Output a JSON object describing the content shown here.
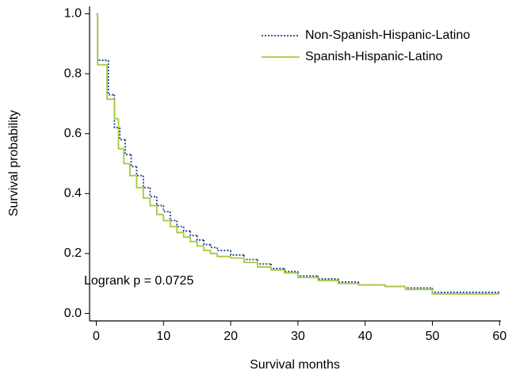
{
  "chart_data": {
    "type": "step",
    "x_label": "Survival months",
    "y_label": "Survival probability",
    "annotation": "Logrank p = 0.0725",
    "xlim": [
      -1,
      60.2
    ],
    "ylim": [
      -0.025,
      1.025
    ],
    "xticks": [
      0,
      10,
      20,
      30,
      40,
      50,
      60
    ],
    "yticks": [
      {
        "value": 0,
        "label": "0.0"
      },
      0.2,
      0.4,
      0.6,
      0.8,
      {
        "value": 1,
        "label": "1.0"
      }
    ],
    "legend": "upper right",
    "series": [
      {
        "name": "Non-Spanish-Hispanic-Latino",
        "color": "#1f3f8f",
        "dash": "dotted",
        "x": [
          0,
          0.2,
          1.8,
          2.7,
          3.5,
          4.3,
          5.2,
          6,
          7,
          8,
          9,
          10,
          11,
          12,
          13,
          14,
          15,
          16,
          17,
          18,
          20,
          22,
          24,
          26,
          28,
          30,
          33,
          36,
          39,
          43,
          46,
          50,
          60
        ],
        "values": [
          1.0,
          0.845,
          0.73,
          0.62,
          0.58,
          0.53,
          0.49,
          0.46,
          0.42,
          0.39,
          0.36,
          0.34,
          0.31,
          0.29,
          0.275,
          0.26,
          0.245,
          0.23,
          0.22,
          0.21,
          0.195,
          0.18,
          0.165,
          0.15,
          0.14,
          0.125,
          0.115,
          0.105,
          0.095,
          0.09,
          0.085,
          0.07,
          0.07
        ]
      },
      {
        "name": "Spanish-Hispanic-Latino",
        "color": "#a8c83a",
        "dash": "solid",
        "x": [
          0,
          0.2,
          1.6,
          2.7,
          3.3,
          4.1,
          5,
          6,
          7,
          8,
          9,
          10,
          11,
          12,
          13,
          14,
          15,
          16,
          17,
          18,
          20,
          22,
          24,
          26,
          28,
          30,
          33,
          36,
          39,
          43,
          46,
          50,
          60
        ],
        "values": [
          1.0,
          0.83,
          0.715,
          0.65,
          0.55,
          0.5,
          0.46,
          0.42,
          0.385,
          0.36,
          0.33,
          0.31,
          0.29,
          0.27,
          0.255,
          0.24,
          0.225,
          0.21,
          0.2,
          0.19,
          0.185,
          0.17,
          0.155,
          0.145,
          0.135,
          0.12,
          0.11,
          0.1,
          0.095,
          0.09,
          0.08,
          0.065,
          0.065
        ]
      }
    ]
  }
}
